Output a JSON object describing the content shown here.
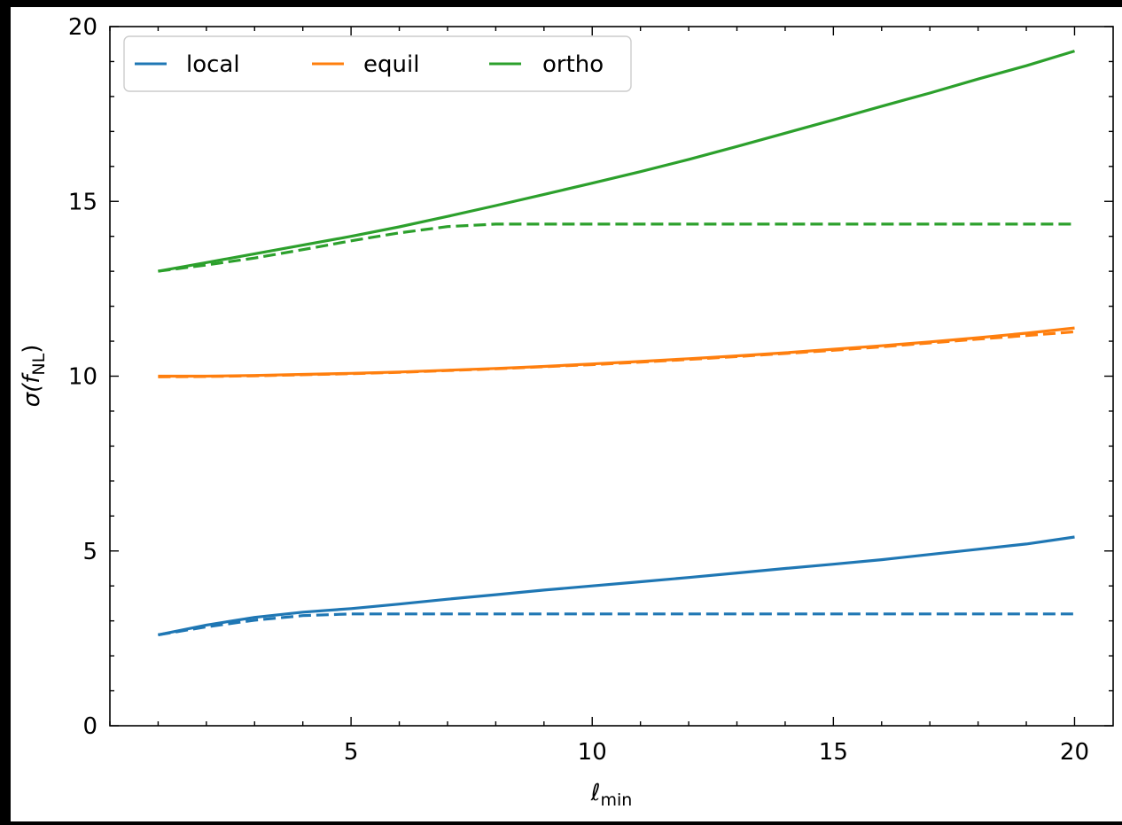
{
  "chart_data": {
    "type": "line",
    "xlabel_main": "ℓ",
    "xlabel_sub": "min",
    "ylabel_main": "σ(f",
    "ylabel_sub": "NL",
    "ylabel_close": ")",
    "xlim": [
      0.0,
      20.8
    ],
    "ylim": [
      0,
      20
    ],
    "x_ticks": [
      5,
      10,
      15,
      20
    ],
    "y_ticks": [
      0,
      5,
      10,
      15,
      20
    ],
    "x_minor_step": 1,
    "y_minor_step": 1,
    "grid": false,
    "legend_position": "top-left",
    "legend_columns": 3,
    "series": [
      {
        "name": "local",
        "color": "#1f77b4",
        "dash": "solid",
        "x": [
          1,
          2,
          3,
          4,
          5,
          6,
          7,
          8,
          9,
          10,
          11,
          12,
          13,
          14,
          15,
          16,
          17,
          18,
          19,
          20
        ],
        "y": [
          2.6,
          2.88,
          3.1,
          3.25,
          3.35,
          3.48,
          3.62,
          3.75,
          3.88,
          4.0,
          4.12,
          4.24,
          4.37,
          4.5,
          4.62,
          4.75,
          4.9,
          5.05,
          5.2,
          5.4
        ]
      },
      {
        "name": "equil",
        "color": "#ff7f0e",
        "dash": "solid",
        "x": [
          1,
          2,
          3,
          4,
          5,
          6,
          7,
          8,
          9,
          10,
          11,
          12,
          13,
          14,
          15,
          16,
          17,
          18,
          19,
          20
        ],
        "y": [
          10.0,
          10.0,
          10.02,
          10.05,
          10.08,
          10.12,
          10.17,
          10.22,
          10.28,
          10.35,
          10.42,
          10.5,
          10.58,
          10.67,
          10.77,
          10.87,
          10.98,
          11.1,
          11.23,
          11.38
        ]
      },
      {
        "name": "ortho",
        "color": "#2ca02c",
        "dash": "solid",
        "x": [
          1,
          2,
          3,
          4,
          5,
          6,
          7,
          8,
          9,
          10,
          11,
          12,
          13,
          14,
          15,
          16,
          17,
          18,
          19,
          20
        ],
        "y": [
          13.0,
          13.25,
          13.5,
          13.75,
          14.0,
          14.27,
          14.57,
          14.88,
          15.2,
          15.52,
          15.85,
          16.2,
          16.57,
          16.95,
          17.33,
          17.72,
          18.1,
          18.5,
          18.88,
          19.3
        ]
      },
      {
        "color": "#1f77b4",
        "dash": "dashed",
        "x": [
          1,
          2,
          3,
          4,
          5,
          6,
          7,
          8,
          9,
          10,
          11,
          12,
          13,
          14,
          15,
          16,
          17,
          18,
          19,
          20
        ],
        "y": [
          2.6,
          2.83,
          3.02,
          3.15,
          3.2,
          3.2,
          3.2,
          3.2,
          3.2,
          3.2,
          3.2,
          3.2,
          3.2,
          3.2,
          3.2,
          3.2,
          3.2,
          3.2,
          3.2,
          3.2
        ]
      },
      {
        "color": "#ff7f0e",
        "dash": "dashed",
        "x": [
          1,
          2,
          3,
          4,
          5,
          6,
          7,
          8,
          9,
          10,
          11,
          12,
          13,
          14,
          15,
          16,
          17,
          18,
          19,
          20
        ],
        "y": [
          9.98,
          9.99,
          10.01,
          10.04,
          10.07,
          10.11,
          10.16,
          10.21,
          10.27,
          10.33,
          10.4,
          10.48,
          10.56,
          10.65,
          10.74,
          10.84,
          10.95,
          11.06,
          11.16,
          11.27
        ]
      },
      {
        "color": "#2ca02c",
        "dash": "dashed",
        "x": [
          1,
          2,
          3,
          4,
          5,
          6,
          7,
          8,
          9,
          10,
          11,
          12,
          13,
          14,
          15,
          16,
          17,
          18,
          19,
          20
        ],
        "y": [
          13.0,
          13.18,
          13.38,
          13.62,
          13.87,
          14.1,
          14.28,
          14.35,
          14.35,
          14.35,
          14.35,
          14.35,
          14.35,
          14.35,
          14.35,
          14.35,
          14.35,
          14.35,
          14.35,
          14.35
        ]
      }
    ]
  }
}
